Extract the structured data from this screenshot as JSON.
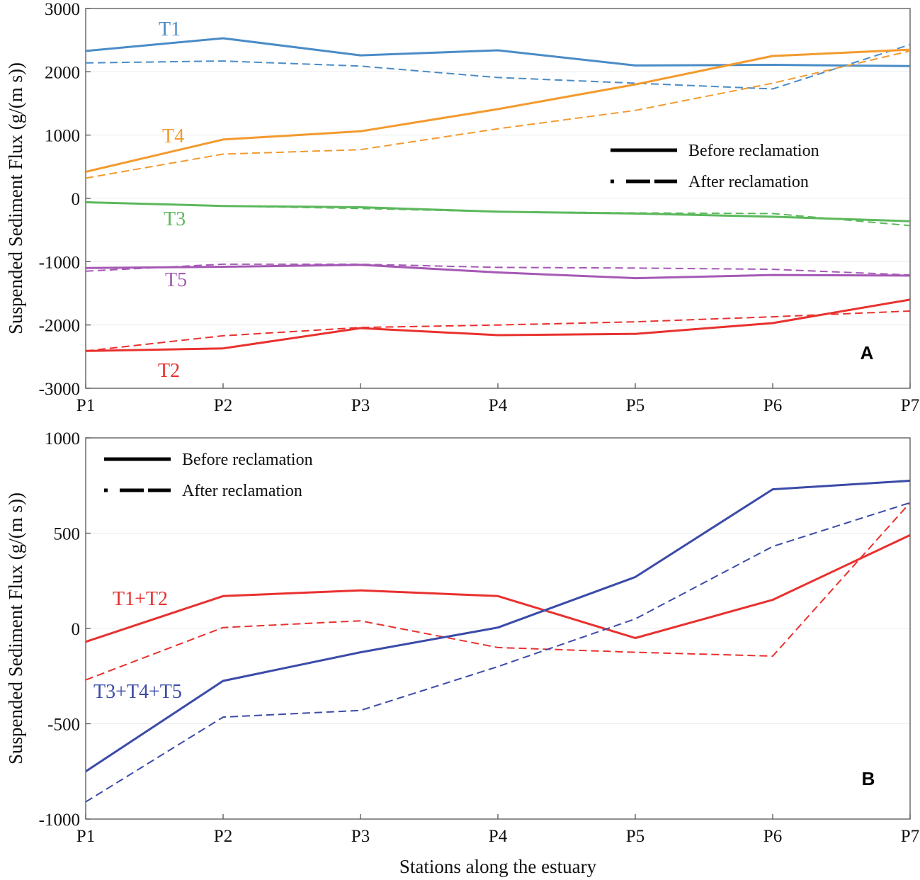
{
  "chart_data": [
    {
      "panel": "A",
      "type": "line",
      "ylabel": "Suspended Sediment Flux (g/(m s))",
      "xlabel": "",
      "categories": [
        "P1",
        "P2",
        "P3",
        "P4",
        "P5",
        "P6",
        "P7"
      ],
      "ylim": [
        -3000,
        3000
      ],
      "yticks": [
        3000,
        2000,
        1000,
        0,
        -1000,
        -2000,
        -3000
      ],
      "yticklabels": [
        "3000",
        "2000",
        "1000",
        "0",
        "-1000",
        "-2000",
        "-3000"
      ],
      "grid": "horizontal",
      "legend": {
        "position": "right",
        "entries": [
          {
            "label": "Before reclamation",
            "style": "solid"
          },
          {
            "label": "After reclamation",
            "style": "dashed"
          }
        ]
      },
      "series": [
        {
          "name": "T1",
          "color": "#4a8cc7",
          "before": [
            2330,
            2530,
            2260,
            2340,
            2100,
            2110,
            2090
          ],
          "after": [
            2140,
            2170,
            2090,
            1910,
            1820,
            1730,
            2430
          ]
        },
        {
          "name": "T4",
          "color": "#f39a2e",
          "before": [
            420,
            930,
            1060,
            1410,
            1800,
            2250,
            2350
          ],
          "after": [
            320,
            700,
            770,
            1100,
            1390,
            1820,
            2330
          ]
        },
        {
          "name": "T3",
          "color": "#5cb85c",
          "before": [
            -60,
            -120,
            -140,
            -210,
            -240,
            -290,
            -360
          ],
          "after": [
            -60,
            -120,
            -160,
            -210,
            -230,
            -240,
            -430
          ]
        },
        {
          "name": "T5",
          "color": "#a559b5",
          "before": [
            -1100,
            -1080,
            -1050,
            -1170,
            -1260,
            -1210,
            -1220
          ],
          "after": [
            -1150,
            -1040,
            -1040,
            -1090,
            -1100,
            -1120,
            -1210
          ]
        },
        {
          "name": "T2",
          "color": "#e8312f",
          "before": [
            -2410,
            -2370,
            -2050,
            -2160,
            -2140,
            -1970,
            -1600
          ],
          "after": [
            -2410,
            -2170,
            -2040,
            -2000,
            -1950,
            -1870,
            -1780
          ]
        }
      ]
    },
    {
      "panel": "B",
      "type": "line",
      "ylabel": "Suspended Sediment Flux (g/(m s))",
      "xlabel": "Stations along the estuary",
      "categories": [
        "P1",
        "P2",
        "P3",
        "P4",
        "P5",
        "P6",
        "P7"
      ],
      "ylim": [
        -1000,
        1000
      ],
      "yticks": [
        1000,
        500,
        0,
        -500,
        -1000
      ],
      "yticklabels": [
        "1000",
        "500",
        "0",
        "-500",
        "-1000"
      ],
      "grid": "horizontal",
      "legend": {
        "position": "top-left",
        "entries": [
          {
            "label": "Before reclamation",
            "style": "solid"
          },
          {
            "label": "After reclamation",
            "style": "dashed"
          }
        ]
      },
      "series": [
        {
          "name": "T1+T2",
          "color": "#e8312f",
          "before": [
            -70,
            170,
            200,
            170,
            -50,
            150,
            490
          ],
          "after": [
            -270,
            5,
            40,
            -100,
            -125,
            -145,
            660
          ]
        },
        {
          "name": "T3+T4+T5",
          "color": "#3b4ba8",
          "before": [
            -750,
            -275,
            -125,
            5,
            270,
            730,
            775
          ],
          "after": [
            -910,
            -465,
            -430,
            -200,
            50,
            430,
            660
          ]
        }
      ]
    }
  ]
}
